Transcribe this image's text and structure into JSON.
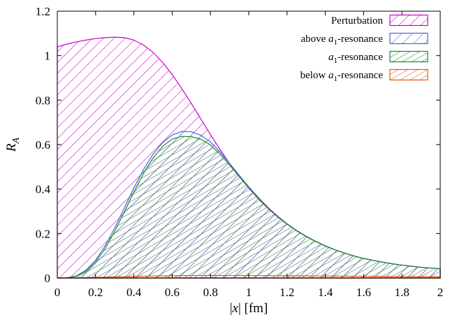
{
  "chart_data": {
    "type": "area",
    "x_label": "|x| [fm]",
    "y_label": "R_A",
    "xlim": [
      0,
      2
    ],
    "ylim": [
      0,
      1.2
    ],
    "x_ticks": [
      "0",
      "0.2",
      "0.4",
      "0.6",
      "0.8",
      "1",
      "1.2",
      "1.4",
      "1.6",
      "1.8",
      "2"
    ],
    "y_ticks": [
      "0",
      "0.2",
      "0.4",
      "0.6",
      "0.8",
      "1",
      "1.2"
    ],
    "legend_position": "top-right",
    "grid": false,
    "x": [
      0,
      0.05,
      0.1,
      0.15,
      0.2,
      0.25,
      0.3,
      0.35,
      0.4,
      0.45,
      0.5,
      0.55,
      0.6,
      0.65,
      0.7,
      0.75,
      0.8,
      0.85,
      0.9,
      0.95,
      1.0,
      1.05,
      1.1,
      1.15,
      1.2,
      1.25,
      1.3,
      1.35,
      1.4,
      1.45,
      1.5,
      1.55,
      1.6,
      1.65,
      1.7,
      1.75,
      1.8,
      1.85,
      1.9,
      1.95,
      2.0
    ],
    "series": [
      {
        "name": "Perturbation",
        "color": "#cc00cc",
        "pattern_angle": 45,
        "values": [
          1.04,
          1.052,
          1.062,
          1.07,
          1.077,
          1.081,
          1.083,
          1.081,
          1.07,
          1.048,
          1.015,
          0.97,
          0.915,
          0.852,
          0.785,
          0.715,
          0.645,
          0.578,
          0.515,
          0.457,
          0.404,
          0.356,
          0.313,
          0.275,
          0.242,
          0.212,
          0.186,
          0.164,
          0.144,
          0.127,
          0.112,
          0.099,
          0.088,
          0.079,
          0.071,
          0.064,
          0.058,
          0.053,
          0.048,
          0.045,
          0.042
        ]
      },
      {
        "name": "above a1-resonance",
        "name_parts": [
          "above ",
          "a",
          "1",
          "-resonance"
        ],
        "color": "#4466dd",
        "pattern_angle": 45,
        "values": [
          0,
          0.001,
          0.01,
          0.035,
          0.08,
          0.145,
          0.225,
          0.315,
          0.405,
          0.487,
          0.557,
          0.609,
          0.643,
          0.659,
          0.658,
          0.642,
          0.612,
          0.567,
          0.515,
          0.462,
          0.41,
          0.362,
          0.318,
          0.279,
          0.244,
          0.214,
          0.188,
          0.165,
          0.145,
          0.127,
          0.112,
          0.099,
          0.088,
          0.079,
          0.071,
          0.064,
          0.058,
          0.053,
          0.048,
          0.045,
          0.042
        ]
      },
      {
        "name": "a1-resonance",
        "name_parts": [
          "",
          "a",
          "1",
          "-resonance"
        ],
        "color": "#228822",
        "pattern_angle": 60,
        "values": [
          0,
          0.001,
          0.008,
          0.03,
          0.072,
          0.133,
          0.21,
          0.297,
          0.387,
          0.47,
          0.54,
          0.592,
          0.625,
          0.637,
          0.636,
          0.624,
          0.599,
          0.557,
          0.508,
          0.456,
          0.406,
          0.359,
          0.316,
          0.277,
          0.243,
          0.213,
          0.187,
          0.164,
          0.144,
          0.127,
          0.112,
          0.099,
          0.088,
          0.079,
          0.071,
          0.064,
          0.058,
          0.053,
          0.048,
          0.045,
          0.042
        ]
      },
      {
        "name": "below a1-resonance",
        "name_parts": [
          "below ",
          "a",
          "1",
          "-resonance"
        ],
        "color": "#ee5511",
        "pattern_angle": 60,
        "values": [
          0,
          0.0002,
          0.001,
          0.002,
          0.003,
          0.004,
          0.005,
          0.006,
          0.007,
          0.008,
          0.009,
          0.0095,
          0.01,
          0.0105,
          0.011,
          0.0112,
          0.0113,
          0.0113,
          0.0112,
          0.0111,
          0.011,
          0.0108,
          0.0106,
          0.0104,
          0.0101,
          0.0098,
          0.0095,
          0.0092,
          0.0089,
          0.0086,
          0.0083,
          0.008,
          0.0077,
          0.0074,
          0.0071,
          0.0068,
          0.0065,
          0.0062,
          0.006,
          0.0058,
          0.0056
        ]
      }
    ]
  }
}
